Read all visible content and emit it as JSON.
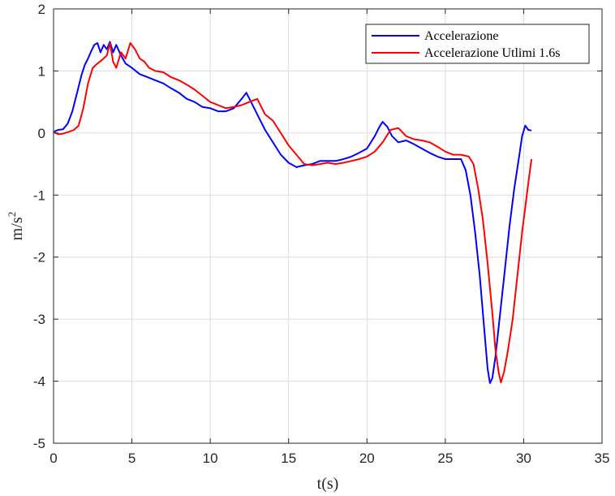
{
  "chart_data": {
    "type": "line",
    "title": "",
    "xlabel": "t(s)",
    "ylabel": "m/s",
    "ylabel_superscript": "2",
    "xlim": [
      0,
      35
    ],
    "ylim": [
      -5,
      2
    ],
    "grid": true,
    "legend_placement": "top-right",
    "x_ticks": [
      "0",
      "5",
      "10",
      "15",
      "20",
      "25",
      "30",
      "35"
    ],
    "y_ticks": [
      "2",
      "1",
      "0",
      "-1",
      "-2",
      "-3",
      "-4",
      "-5"
    ],
    "series": [
      {
        "name": "Accelerazione",
        "color": "#0000ff",
        "points": [
          [
            0.0,
            0.02
          ],
          [
            0.3,
            0.05
          ],
          [
            0.6,
            0.06
          ],
          [
            0.9,
            0.15
          ],
          [
            1.2,
            0.35
          ],
          [
            1.5,
            0.65
          ],
          [
            1.8,
            0.95
          ],
          [
            2.0,
            1.1
          ],
          [
            2.2,
            1.2
          ],
          [
            2.4,
            1.32
          ],
          [
            2.6,
            1.42
          ],
          [
            2.8,
            1.45
          ],
          [
            3.0,
            1.3
          ],
          [
            3.2,
            1.42
          ],
          [
            3.4,
            1.35
          ],
          [
            3.6,
            1.47
          ],
          [
            3.8,
            1.3
          ],
          [
            4.0,
            1.42
          ],
          [
            4.3,
            1.25
          ],
          [
            4.6,
            1.12
          ],
          [
            5.0,
            1.05
          ],
          [
            5.5,
            0.95
          ],
          [
            6.0,
            0.9
          ],
          [
            6.5,
            0.85
          ],
          [
            7.0,
            0.8
          ],
          [
            7.5,
            0.72
          ],
          [
            8.0,
            0.65
          ],
          [
            8.5,
            0.55
          ],
          [
            9.0,
            0.5
          ],
          [
            9.5,
            0.42
          ],
          [
            10.0,
            0.4
          ],
          [
            10.5,
            0.35
          ],
          [
            11.0,
            0.35
          ],
          [
            11.5,
            0.4
          ],
          [
            12.0,
            0.55
          ],
          [
            12.3,
            0.65
          ],
          [
            12.6,
            0.5
          ],
          [
            13.0,
            0.3
          ],
          [
            13.5,
            0.05
          ],
          [
            14.0,
            -0.15
          ],
          [
            14.5,
            -0.35
          ],
          [
            15.0,
            -0.48
          ],
          [
            15.5,
            -0.55
          ],
          [
            16.0,
            -0.52
          ],
          [
            16.5,
            -0.5
          ],
          [
            17.0,
            -0.45
          ],
          [
            17.5,
            -0.45
          ],
          [
            18.0,
            -0.45
          ],
          [
            18.5,
            -0.42
          ],
          [
            19.0,
            -0.38
          ],
          [
            19.5,
            -0.32
          ],
          [
            20.0,
            -0.25
          ],
          [
            20.5,
            -0.05
          ],
          [
            20.8,
            0.1
          ],
          [
            21.0,
            0.18
          ],
          [
            21.3,
            0.1
          ],
          [
            21.6,
            -0.05
          ],
          [
            22.0,
            -0.15
          ],
          [
            22.5,
            -0.12
          ],
          [
            23.0,
            -0.18
          ],
          [
            23.5,
            -0.25
          ],
          [
            24.0,
            -0.32
          ],
          [
            24.5,
            -0.38
          ],
          [
            25.0,
            -0.42
          ],
          [
            25.5,
            -0.42
          ],
          [
            26.0,
            -0.42
          ],
          [
            26.3,
            -0.6
          ],
          [
            26.6,
            -1.0
          ],
          [
            26.9,
            -1.6
          ],
          [
            27.2,
            -2.3
          ],
          [
            27.5,
            -3.2
          ],
          [
            27.7,
            -3.8
          ],
          [
            27.85,
            -4.03
          ],
          [
            28.0,
            -3.95
          ],
          [
            28.2,
            -3.6
          ],
          [
            28.5,
            -2.9
          ],
          [
            28.8,
            -2.2
          ],
          [
            29.1,
            -1.5
          ],
          [
            29.4,
            -0.9
          ],
          [
            29.7,
            -0.4
          ],
          [
            29.9,
            -0.05
          ],
          [
            30.1,
            0.12
          ],
          [
            30.3,
            0.05
          ],
          [
            30.5,
            0.04
          ]
        ]
      },
      {
        "name": "Accelerazione Utlimi 1.6s",
        "color": "#ff0000",
        "points": [
          [
            0.0,
            0.02
          ],
          [
            0.3,
            -0.02
          ],
          [
            0.6,
            -0.01
          ],
          [
            1.0,
            0.02
          ],
          [
            1.3,
            0.05
          ],
          [
            1.6,
            0.12
          ],
          [
            1.9,
            0.4
          ],
          [
            2.2,
            0.8
          ],
          [
            2.5,
            1.05
          ],
          [
            2.8,
            1.12
          ],
          [
            3.1,
            1.18
          ],
          [
            3.4,
            1.25
          ],
          [
            3.6,
            1.45
          ],
          [
            3.8,
            1.15
          ],
          [
            4.0,
            1.05
          ],
          [
            4.3,
            1.3
          ],
          [
            4.6,
            1.2
          ],
          [
            4.9,
            1.45
          ],
          [
            5.2,
            1.35
          ],
          [
            5.5,
            1.2
          ],
          [
            5.8,
            1.15
          ],
          [
            6.1,
            1.05
          ],
          [
            6.5,
            1.0
          ],
          [
            7.0,
            0.98
          ],
          [
            7.5,
            0.9
          ],
          [
            8.0,
            0.85
          ],
          [
            8.5,
            0.78
          ],
          [
            9.0,
            0.7
          ],
          [
            9.5,
            0.6
          ],
          [
            10.0,
            0.5
          ],
          [
            10.5,
            0.45
          ],
          [
            11.0,
            0.4
          ],
          [
            11.5,
            0.42
          ],
          [
            12.0,
            0.45
          ],
          [
            12.5,
            0.5
          ],
          [
            13.0,
            0.55
          ],
          [
            13.5,
            0.3
          ],
          [
            14.0,
            0.2
          ],
          [
            14.5,
            0.0
          ],
          [
            15.0,
            -0.2
          ],
          [
            15.5,
            -0.35
          ],
          [
            16.0,
            -0.5
          ],
          [
            16.5,
            -0.52
          ],
          [
            17.0,
            -0.5
          ],
          [
            17.5,
            -0.48
          ],
          [
            18.0,
            -0.5
          ],
          [
            18.5,
            -0.48
          ],
          [
            19.0,
            -0.45
          ],
          [
            19.5,
            -0.42
          ],
          [
            20.0,
            -0.38
          ],
          [
            20.5,
            -0.3
          ],
          [
            21.0,
            -0.15
          ],
          [
            21.5,
            0.05
          ],
          [
            22.0,
            0.08
          ],
          [
            22.5,
            -0.05
          ],
          [
            23.0,
            -0.1
          ],
          [
            23.5,
            -0.12
          ],
          [
            24.0,
            -0.15
          ],
          [
            24.5,
            -0.22
          ],
          [
            25.0,
            -0.3
          ],
          [
            25.5,
            -0.35
          ],
          [
            26.0,
            -0.35
          ],
          [
            26.5,
            -0.38
          ],
          [
            26.8,
            -0.5
          ],
          [
            27.1,
            -0.9
          ],
          [
            27.4,
            -1.4
          ],
          [
            27.7,
            -2.1
          ],
          [
            28.0,
            -2.9
          ],
          [
            28.2,
            -3.5
          ],
          [
            28.4,
            -3.85
          ],
          [
            28.55,
            -4.02
          ],
          [
            28.75,
            -3.85
          ],
          [
            29.0,
            -3.5
          ],
          [
            29.3,
            -3.0
          ],
          [
            29.6,
            -2.3
          ],
          [
            29.9,
            -1.6
          ],
          [
            30.2,
            -1.0
          ],
          [
            30.4,
            -0.6
          ],
          [
            30.5,
            -0.42
          ]
        ]
      }
    ]
  }
}
